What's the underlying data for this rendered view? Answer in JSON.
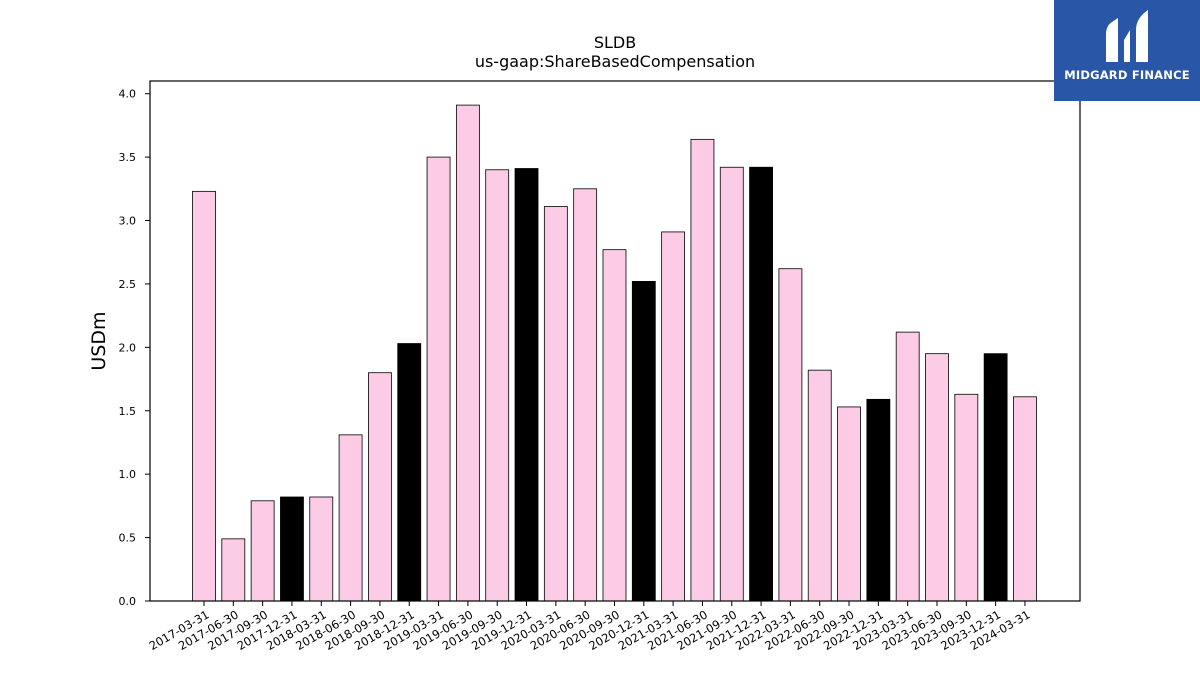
{
  "chart_data": {
    "type": "bar",
    "title": "SLDB",
    "subtitle": "us-gaap:ShareBasedCompensation",
    "xlabel": "",
    "ylabel": "USDm",
    "ylim": [
      0,
      4.1
    ],
    "yticks": [
      "0.0",
      "0.5",
      "1.0",
      "1.5",
      "2.0",
      "2.5",
      "3.0",
      "3.5",
      "4.0"
    ],
    "grid": false,
    "colors": {
      "quarter": "#fccce6",
      "year_end": "#000000",
      "edge": "#000000"
    },
    "categories": [
      "2017-03-31",
      "2017-06-30",
      "2017-09-30",
      "2017-12-31",
      "2018-03-31",
      "2018-06-30",
      "2018-09-30",
      "2018-12-31",
      "2019-03-31",
      "2019-06-30",
      "2019-09-30",
      "2019-12-31",
      "2020-03-31",
      "2020-06-30",
      "2020-09-30",
      "2020-12-31",
      "2021-03-31",
      "2021-06-30",
      "2021-09-30",
      "2021-12-31",
      "2022-03-31",
      "2022-06-30",
      "2022-09-30",
      "2022-12-31",
      "2023-03-31",
      "2023-06-30",
      "2023-09-30",
      "2023-12-31",
      "2024-03-31"
    ],
    "values": [
      3.23,
      0.49,
      0.79,
      0.82,
      0.82,
      1.31,
      1.8,
      2.03,
      3.5,
      3.91,
      3.4,
      3.41,
      3.11,
      3.25,
      2.77,
      2.52,
      2.91,
      3.64,
      3.42,
      3.42,
      2.62,
      1.82,
      1.53,
      1.59,
      2.12,
      1.95,
      1.63,
      1.95,
      1.61
    ],
    "year_end": [
      false,
      false,
      false,
      true,
      false,
      false,
      false,
      true,
      false,
      false,
      false,
      true,
      false,
      false,
      false,
      true,
      false,
      false,
      false,
      true,
      false,
      false,
      false,
      true,
      false,
      false,
      false,
      true,
      false
    ]
  },
  "logo": {
    "text": "MIDGARD FINANCE",
    "icon": "midgard-m-icon",
    "background": "#2a56a8"
  }
}
